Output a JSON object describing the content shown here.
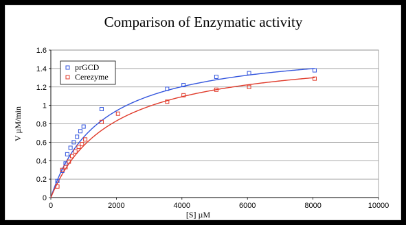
{
  "chart_data": {
    "type": "scatter",
    "title": "Comparison of Enzymatic activity",
    "xlabel": "[S] µM",
    "ylabel": "V µM/min",
    "xlim": [
      0,
      10000
    ],
    "ylim": [
      0,
      1.6
    ],
    "xticks": [
      0,
      2000,
      4000,
      6000,
      8000,
      10000
    ],
    "yticks": [
      0,
      0.2,
      0.4,
      0.6,
      0.8,
      1,
      1.2,
      1.4,
      1.6
    ],
    "grid": "horizontal",
    "legend_position": "top-left",
    "series": [
      {
        "name": "prGCD",
        "color": "#3355dd",
        "marker": "square-open",
        "points": [
          [
            200,
            0.18
          ],
          [
            350,
            0.29
          ],
          [
            450,
            0.37
          ],
          [
            500,
            0.47
          ],
          [
            600,
            0.54
          ],
          [
            700,
            0.6
          ],
          [
            800,
            0.66
          ],
          [
            900,
            0.72
          ],
          [
            1000,
            0.77
          ],
          [
            1550,
            0.96
          ],
          [
            3550,
            1.18
          ],
          [
            4050,
            1.22
          ],
          [
            5050,
            1.31
          ],
          [
            6050,
            1.35
          ],
          [
            8050,
            1.38
          ]
        ],
        "fit": {
          "vmax": 1.67,
          "km": 1550
        }
      },
      {
        "name": "Cerezyme",
        "color": "#e03a2a",
        "marker": "square-open",
        "points": [
          [
            200,
            0.12
          ],
          [
            350,
            0.3
          ],
          [
            450,
            0.33
          ],
          [
            550,
            0.39
          ],
          [
            650,
            0.45
          ],
          [
            750,
            0.5
          ],
          [
            850,
            0.55
          ],
          [
            950,
            0.58
          ],
          [
            1050,
            0.63
          ],
          [
            1550,
            0.82
          ],
          [
            2050,
            0.91
          ],
          [
            3550,
            1.04
          ],
          [
            4050,
            1.11
          ],
          [
            5050,
            1.17
          ],
          [
            6050,
            1.2
          ],
          [
            8050,
            1.29
          ]
        ],
        "fit": {
          "vmax": 1.6,
          "km": 1850
        }
      }
    ]
  }
}
